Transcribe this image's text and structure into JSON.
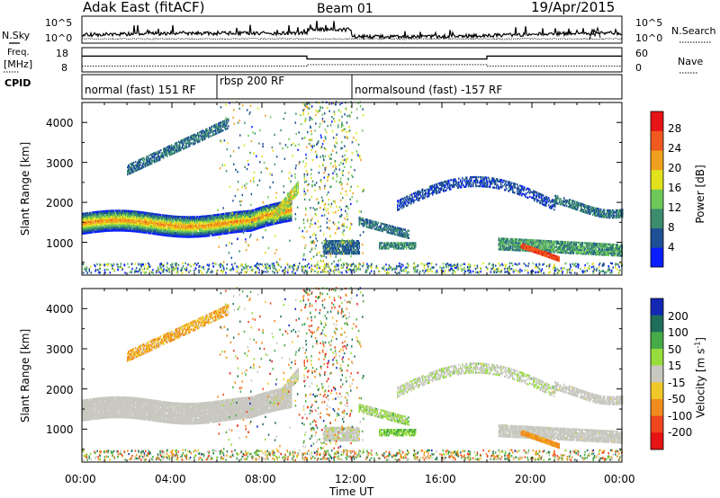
{
  "header": {
    "title": "Adak East (fitACF)",
    "beam": "Beam 01",
    "date": "19/Apr/2015"
  },
  "side_labels": {
    "nsky": "N.Sky",
    "freq_line1": "Freq.",
    "freq_line2": "[MHz]",
    "cpid": "CPID",
    "nsearch": "N.Search",
    "nave": "Nave"
  },
  "cpid_segments": [
    {
      "label": "normal (fast) 151 RF",
      "start": 0,
      "end": 6
    },
    {
      "label": "rbsp 200 RF",
      "start": 6,
      "end": 12
    },
    {
      "label": "normalsound (fast) -157 RF",
      "start": 12,
      "end": 24
    }
  ],
  "chart_data": [
    {
      "type": "line",
      "name": "noise-panel",
      "y_left_ticks": [
        "10^5",
        "10^0"
      ],
      "y_right_ticks": [
        "10^5",
        "10^0"
      ],
      "left_label": "N.Sky",
      "right_label": "N.Search"
    },
    {
      "type": "line",
      "name": "freq-panel",
      "y_left_ticks": [
        18,
        8
      ],
      "y_right_ticks": [
        60,
        0
      ],
      "freq_steps": [
        {
          "start": 0,
          "end": 10,
          "mhz": 15.4
        },
        {
          "start": 10,
          "end": 18,
          "mhz": 13.5
        },
        {
          "start": 18,
          "end": 24,
          "mhz": 15.4
        }
      ],
      "nave_steps": [
        {
          "start": 0,
          "end": 10,
          "nave": 18
        },
        {
          "start": 10,
          "end": 18,
          "nave": 22
        },
        {
          "start": 18,
          "end": 24,
          "nave": 18
        }
      ]
    },
    {
      "type": "heatmap",
      "name": "power-panel",
      "ylabel": "Slant Range [km]",
      "y_ticks": [
        1000,
        2000,
        3000,
        4000
      ],
      "ylim": [
        180,
        4500
      ],
      "colorbar_label": "Power [dB]",
      "colorbar_ticks": [
        4,
        8,
        12,
        16,
        20,
        24,
        28
      ],
      "colorbar_range": [
        0,
        30
      ],
      "colors": [
        "#0a1eff",
        "#1e5096",
        "#3c8c6e",
        "#6ec85a",
        "#e1e11e",
        "#f0a01e",
        "#f05a1e",
        "#e61414"
      ]
    },
    {
      "type": "heatmap",
      "name": "velocity-panel",
      "ylabel": "Slant Range [km]",
      "y_ticks": [
        1000,
        2000,
        3000,
        4000
      ],
      "ylim": [
        180,
        4500
      ],
      "xlabel": "Time UT",
      "x_ticks": [
        "00:00",
        "04:00",
        "08:00",
        "12:00",
        "16:00",
        "20:00",
        "00:00"
      ],
      "colorbar_label_main": "Velocity [m s",
      "colorbar_label_sup": "-1",
      "colorbar_label_end": "]",
      "colorbar_ticks": [
        200,
        100,
        50,
        15,
        -15,
        -50,
        -100,
        -200
      ],
      "colors": [
        "#1428b4",
        "#1e6e5a",
        "#46aa46",
        "#96dc3c",
        "#c8c8c0",
        "#f0c828",
        "#f08c1e",
        "#f0461e",
        "#e61414"
      ]
    }
  ]
}
